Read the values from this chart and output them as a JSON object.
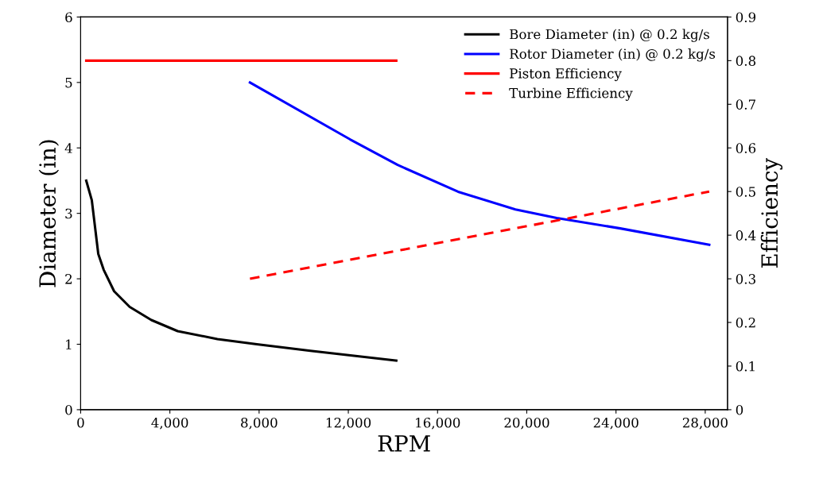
{
  "chart_data": {
    "type": "line",
    "xlabel": "RPM",
    "ylabel": "Diameter (in)",
    "y2label": "Efficiency",
    "xlim": [
      0,
      29000
    ],
    "xticks": [
      {
        "value": 0,
        "label": "0"
      },
      {
        "value": 4000,
        "label": "4,000"
      },
      {
        "value": 8000,
        "label": "8,000"
      },
      {
        "value": 12000,
        "label": "12,000"
      },
      {
        "value": 16000,
        "label": "16,000"
      },
      {
        "value": 20000,
        "label": "20,000"
      },
      {
        "value": 24000,
        "label": "24,000"
      },
      {
        "value": 28000,
        "label": "28,000"
      }
    ],
    "ylim": [
      0,
      6
    ],
    "yticks": [
      0,
      1,
      2,
      3,
      4,
      5,
      6
    ],
    "y2lim": [
      0,
      0.9
    ],
    "y2ticks": [
      {
        "value": 0,
        "label": "0"
      },
      0.1,
      0.2,
      0.3,
      0.4,
      0.5,
      0.6,
      0.7,
      0.8,
      0.9
    ],
    "grid": false,
    "legend": "top right",
    "marker": "none",
    "series": [
      {
        "name": "Bore Diameter (in) @ 0.2 kg/s",
        "color": "#000000",
        "line_style": "solid",
        "x": [
          250,
          500,
          790,
          1030,
          1500,
          2200,
          3170,
          4350,
          6130,
          7900,
          10300,
          14150
        ],
        "values": [
          3.5,
          3.2,
          2.38,
          2.14,
          1.81,
          1.57,
          1.37,
          1.2,
          1.08,
          1.0,
          0.9,
          0.75
        ]
      },
      {
        "name": "Rotor Diameter (in) @ 0.2 kg/s",
        "color": "#0000ff",
        "line_style": "solid",
        "x": [
          7590,
          12080,
          14210,
          16920,
          19490,
          21340,
          24190,
          28180
        ],
        "values": [
          5.0,
          4.13,
          3.74,
          3.33,
          3.06,
          2.93,
          2.77,
          2.52
        ]
      },
      {
        "name": "Piston Efficiency",
        "color": "#ff0000",
        "line_style": "solid",
        "axis": "y2",
        "x": [
          250,
          14150
        ],
        "values": [
          0.8,
          0.8
        ]
      },
      {
        "name": "Turbine Efficiency",
        "color": "#ff0000",
        "line_style": "dashed",
        "axis": "y2",
        "x": [
          7590,
          28180
        ],
        "values": [
          0.3,
          0.5
        ]
      }
    ]
  }
}
